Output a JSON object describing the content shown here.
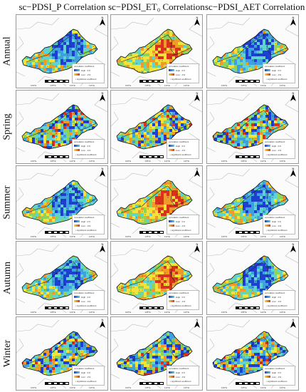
{
  "columns": [
    {
      "title": "sc−PDSI_P Correlation"
    },
    {
      "title": "sc−PDSI_ET₀ Correlation"
    },
    {
      "title": "sc−PDSI_AET Correlation"
    }
  ],
  "rows": [
    {
      "label": "Annual"
    },
    {
      "label": "Spring"
    },
    {
      "label": "Summer"
    },
    {
      "label": "Autumn"
    },
    {
      "label": "Winter"
    }
  ],
  "map_north_label": "N",
  "legend": {
    "title": "correlation coefficient",
    "item_low": "High : 0.9",
    "item_high": "Low : -0.9",
    "item_sig": "significant coefficient"
  },
  "longitude_ticks": [
    "100°E",
    "105°E",
    "110°E",
    "115°E"
  ],
  "colors": {
    "high": "#1f3fd1",
    "mid_blue": "#3fa0e0",
    "cyan": "#5fd3d0",
    "green": "#8fd45a",
    "yellow": "#f2e23a",
    "orange": "#f09a2a",
    "red": "#d8321c",
    "boundary": "#bdbdbd"
  },
  "panels": [
    {
      "row": 0,
      "col": 0,
      "scheme": "blue"
    },
    {
      "row": 0,
      "col": 1,
      "scheme": "red"
    },
    {
      "row": 0,
      "col": 2,
      "scheme": "blue"
    },
    {
      "row": 1,
      "col": 0,
      "scheme": "mixed"
    },
    {
      "row": 1,
      "col": 1,
      "scheme": "mixed"
    },
    {
      "row": 1,
      "col": 2,
      "scheme": "mixed"
    },
    {
      "row": 2,
      "col": 0,
      "scheme": "blue"
    },
    {
      "row": 2,
      "col": 1,
      "scheme": "red"
    },
    {
      "row": 2,
      "col": 2,
      "scheme": "blue"
    },
    {
      "row": 3,
      "col": 0,
      "scheme": "blue"
    },
    {
      "row": 3,
      "col": 1,
      "scheme": "red"
    },
    {
      "row": 3,
      "col": 2,
      "scheme": "blue"
    },
    {
      "row": 4,
      "col": 0,
      "scheme": "mixed"
    },
    {
      "row": 4,
      "col": 1,
      "scheme": "mixed"
    },
    {
      "row": 4,
      "col": 2,
      "scheme": "mixed"
    }
  ]
}
